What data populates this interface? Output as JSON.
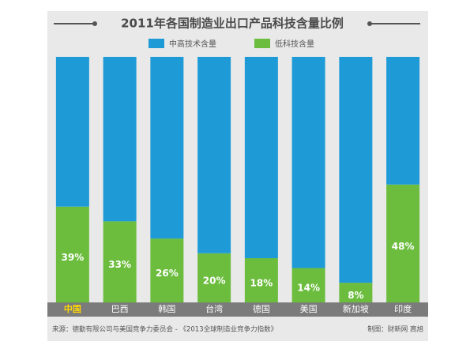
{
  "chart_data": {
    "type": "stacked_bar_100",
    "title": "2011年各国制造业出口产品科技含量比例",
    "categories": [
      "中国",
      "巴西",
      "韩国",
      "台湾",
      "德国",
      "美国",
      "新加坡",
      "印度"
    ],
    "series": [
      {
        "name": "低科技含量",
        "color": "#6cbd3e",
        "values": [
          39,
          33,
          26,
          20,
          18,
          14,
          8,
          48
        ],
        "value_labels": [
          "39%",
          "33%",
          "26%",
          "20%",
          "18%",
          "14%",
          "8%",
          "48%"
        ]
      },
      {
        "name": "中高技术含量",
        "color": "#1e9bd7",
        "values": [
          61,
          67,
          74,
          80,
          82,
          86,
          92,
          52
        ]
      }
    ],
    "source": "来源：德勤有限公司与美国竞争力委员会 - 《2013全球制造业竞争力指数》",
    "credit": "制图：财新网  高旭"
  }
}
